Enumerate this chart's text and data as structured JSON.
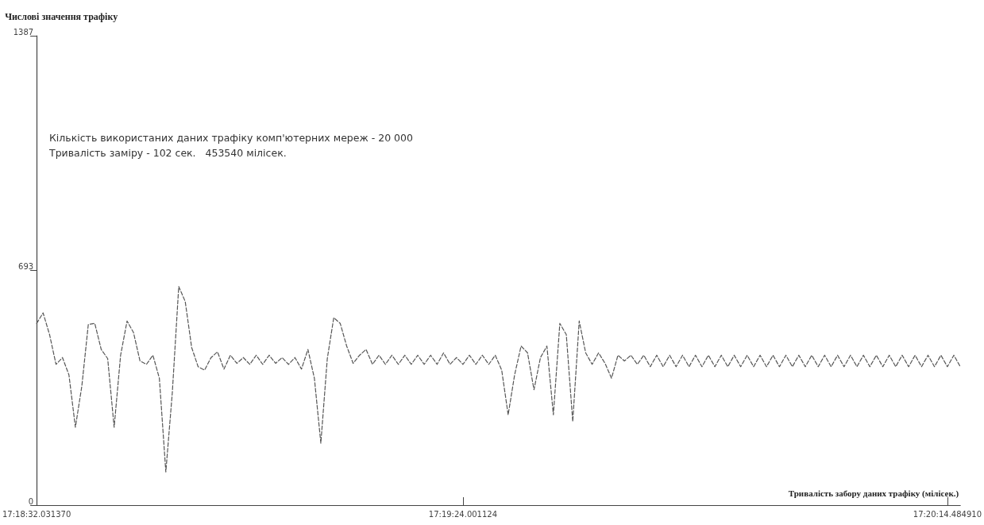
{
  "chart_data": {
    "type": "line",
    "ylabel": "Числові значення трафіку",
    "xlabel": "Тривалість забору даних трафіку (мілісек.)",
    "annotations": [
      "Кількість використаних даних трафіку комп'ютерних мереж - 20 000",
      "Тривалість заміру - 102 сек.   453540 мілісек."
    ],
    "categories": [
      "17:18:32.031370",
      null,
      null,
      null,
      null,
      null,
      null,
      null,
      null,
      null,
      null,
      null,
      null,
      null,
      null,
      null,
      null,
      null,
      null,
      null,
      null,
      null,
      null,
      null,
      null,
      null,
      null,
      null,
      null,
      null,
      null,
      null,
      null,
      null,
      null,
      null,
      null,
      null,
      null,
      null,
      null,
      null,
      null,
      null,
      null,
      null,
      null,
      null,
      null,
      null,
      null,
      null,
      null,
      null,
      null,
      null,
      null,
      null,
      null,
      null,
      null,
      null,
      null,
      null,
      null,
      null,
      "17:19:24.001124",
      null,
      null,
      null,
      null,
      null,
      null,
      null,
      null,
      null,
      null,
      null,
      null,
      null,
      null,
      null,
      null,
      null,
      null,
      null,
      null,
      null,
      null,
      null,
      null,
      null,
      null,
      null,
      null,
      null,
      null,
      null,
      null,
      null,
      null,
      null,
      null,
      null,
      null,
      null,
      null,
      null,
      null,
      null,
      null,
      null,
      null,
      null,
      null,
      null,
      null,
      null,
      null,
      null,
      null,
      null,
      null,
      null,
      null,
      null,
      null,
      null,
      null,
      null,
      null,
      null,
      null,
      null,
      null,
      null,
      null,
      null,
      null,
      null,
      null,
      "17:20:14.484910",
      null,
      null
    ],
    "ylim": [
      0,
      1387
    ],
    "yticks": [
      0,
      693,
      1387
    ],
    "grid": false,
    "marker": "none",
    "line_style": "dashed",
    "series": [
      {
        "color": "#555555",
        "values": [
          537,
          568,
          504,
          416,
          436,
          385,
          230,
          352,
          534,
          537,
          460,
          433,
          230,
          443,
          544,
          510,
          426,
          416,
          443,
          375,
          98,
          331,
          646,
          602,
          466,
          409,
          399,
          436,
          453,
          402,
          443,
          419,
          436,
          416,
          443,
          416,
          443,
          419,
          436,
          416,
          436,
          402,
          460,
          375,
          183,
          433,
          554,
          537,
          470,
          419,
          443,
          460,
          416,
          443,
          416,
          443,
          416,
          443,
          416,
          443,
          416,
          443,
          416,
          450,
          416,
          436,
          416,
          443,
          416,
          443,
          416,
          443,
          399,
          267,
          385,
          470,
          450,
          341,
          436,
          470,
          267,
          537,
          504,
          247,
          544,
          450,
          416,
          450,
          419,
          375,
          443,
          426,
          443,
          416,
          443,
          409,
          443,
          409,
          443,
          409,
          443,
          409,
          443,
          409,
          443,
          409,
          443,
          409,
          443,
          409,
          443,
          409,
          443,
          409,
          443,
          409,
          443,
          409,
          443,
          409,
          443,
          409,
          443,
          409,
          443,
          409,
          443,
          409,
          443,
          409,
          443,
          409,
          443,
          409,
          443,
          409,
          443,
          409,
          443,
          409,
          443,
          409,
          443,
          409
        ]
      }
    ]
  }
}
